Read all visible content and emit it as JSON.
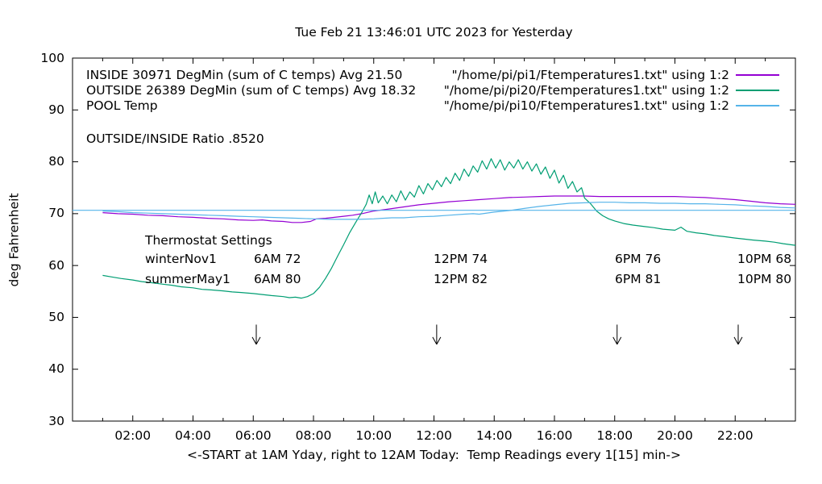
{
  "title": "Tue Feb 21 13:46:01 UTC 2023 for Yesterday",
  "ratio_text": "OUTSIDE/INSIDE Ratio .8520",
  "y_axis": {
    "label": "deg Fahrenheit",
    "min": 30,
    "max": 100,
    "ticks": [
      30,
      40,
      50,
      60,
      70,
      80,
      90,
      100
    ]
  },
  "x_axis": {
    "label": "<-START at 1AM Yday, right to 12AM Today:  Temp Readings every 1[15] min->",
    "min_hour": 0,
    "max_hour": 24,
    "major_ticks": [
      {
        "hour": 2,
        "label": "02:00"
      },
      {
        "hour": 4,
        "label": "04:00"
      },
      {
        "hour": 6,
        "label": "06:00"
      },
      {
        "hour": 8,
        "label": "08:00"
      },
      {
        "hour": 10,
        "label": "10:00"
      },
      {
        "hour": 12,
        "label": "12:00"
      },
      {
        "hour": 14,
        "label": "14:00"
      },
      {
        "hour": 16,
        "label": "16:00"
      },
      {
        "hour": 18,
        "label": "18:00"
      },
      {
        "hour": 20,
        "label": "20:00"
      },
      {
        "hour": 22,
        "label": "22:00"
      }
    ],
    "minor_tick_hours": [
      1,
      3,
      5,
      7,
      9,
      11,
      13,
      15,
      17,
      19,
      21,
      23
    ]
  },
  "legend": {
    "rows": [
      {
        "label": "INSIDE 30971 DegMin (sum of C temps) Avg 21.50",
        "file": "\"/home/pi/pi1/Ftemperatures1.txt\" using 1:2",
        "color": "#9400d3"
      },
      {
        "label": "OUTSIDE 26389 DegMin (sum of C temps) Avg 18.32",
        "file": "\"/home/pi/pi20/Ftemperatures1.txt\" using 1:2",
        "color": "#009e73"
      },
      {
        "label": "POOL Temp",
        "file": "\"/home/pi/pi10/Ftemperatures1.txt\" using 1:2",
        "color": "#56b4e9"
      }
    ]
  },
  "thermostat": {
    "heading": "Thermostat Settings",
    "rows": [
      {
        "season": "winterNov1",
        "settings": [
          "6AM 72",
          "12PM 74",
          "6PM 76",
          "10PM 68"
        ]
      },
      {
        "season": "summerMay1",
        "settings": [
          "6AM 80",
          "12PM 82",
          "6PM 81",
          "10PM 80"
        ]
      }
    ]
  },
  "chart_data": {
    "type": "line",
    "title": "Tue Feb 21 13:46:01 UTC 2023 for Yesterday",
    "xlabel": "<-START at 1AM Yday, right to 12AM Today:  Temp Readings every 1[15] min->",
    "ylabel": "deg Fahrenheit",
    "xlim": [
      0,
      24
    ],
    "ylim": [
      30,
      100
    ],
    "x_unit": "hour of day (Yesterday, 24h clock)",
    "grid": false,
    "legend_position": "top-left-inside",
    "series": [
      {
        "name": "INSIDE",
        "slug": "inside",
        "color": "#9400d3",
        "points": [
          [
            1,
            70.2
          ],
          [
            1.5,
            70.0
          ],
          [
            2,
            69.9
          ],
          [
            2.5,
            69.7
          ],
          [
            3,
            69.6
          ],
          [
            3.5,
            69.4
          ],
          [
            4,
            69.3
          ],
          [
            4.5,
            69.1
          ],
          [
            5,
            69.0
          ],
          [
            5.5,
            68.8
          ],
          [
            6,
            68.7
          ],
          [
            6.3,
            68.8
          ],
          [
            6.6,
            68.6
          ],
          [
            7,
            68.5
          ],
          [
            7.3,
            68.3
          ],
          [
            7.6,
            68.3
          ],
          [
            7.9,
            68.5
          ],
          [
            8.1,
            69.0
          ],
          [
            8.4,
            69.1
          ],
          [
            8.7,
            69.3
          ],
          [
            9,
            69.5
          ],
          [
            9.3,
            69.7
          ],
          [
            9.6,
            70.0
          ],
          [
            10,
            70.5
          ],
          [
            10.5,
            70.9
          ],
          [
            11,
            71.3
          ],
          [
            11.5,
            71.7
          ],
          [
            12,
            72.0
          ],
          [
            12.5,
            72.3
          ],
          [
            13,
            72.5
          ],
          [
            13.5,
            72.7
          ],
          [
            14,
            72.9
          ],
          [
            14.5,
            73.1
          ],
          [
            15,
            73.2
          ],
          [
            15.5,
            73.3
          ],
          [
            16,
            73.4
          ],
          [
            16.5,
            73.4
          ],
          [
            17,
            73.4
          ],
          [
            17.5,
            73.3
          ],
          [
            18,
            73.3
          ],
          [
            18.5,
            73.3
          ],
          [
            19,
            73.3
          ],
          [
            19.5,
            73.3
          ],
          [
            20,
            73.3
          ],
          [
            20.5,
            73.2
          ],
          [
            21,
            73.1
          ],
          [
            21.5,
            72.9
          ],
          [
            22,
            72.7
          ],
          [
            22.5,
            72.4
          ],
          [
            23,
            72.1
          ],
          [
            23.5,
            71.9
          ],
          [
            24,
            71.8
          ]
        ]
      },
      {
        "name": "OUTSIDE",
        "slug": "outside",
        "color": "#009e73",
        "points": [
          [
            1,
            58.1
          ],
          [
            1.3,
            57.8
          ],
          [
            1.6,
            57.5
          ],
          [
            2,
            57.2
          ],
          [
            2.3,
            56.9
          ],
          [
            2.6,
            56.7
          ],
          [
            3,
            56.4
          ],
          [
            3.3,
            56.2
          ],
          [
            3.6,
            55.9
          ],
          [
            4,
            55.7
          ],
          [
            4.3,
            55.4
          ],
          [
            4.6,
            55.3
          ],
          [
            5,
            55.1
          ],
          [
            5.3,
            54.9
          ],
          [
            5.6,
            54.8
          ],
          [
            6,
            54.6
          ],
          [
            6.3,
            54.4
          ],
          [
            6.6,
            54.2
          ],
          [
            7,
            54.0
          ],
          [
            7.2,
            53.8
          ],
          [
            7.4,
            53.9
          ],
          [
            7.6,
            53.7
          ],
          [
            7.8,
            54.0
          ],
          [
            8,
            54.6
          ],
          [
            8.2,
            55.8
          ],
          [
            8.4,
            57.5
          ],
          [
            8.6,
            59.5
          ],
          [
            8.8,
            61.8
          ],
          [
            9,
            64.0
          ],
          [
            9.2,
            66.3
          ],
          [
            9.4,
            68.3
          ],
          [
            9.6,
            70.2
          ],
          [
            9.75,
            71.8
          ],
          [
            9.85,
            73.6
          ],
          [
            9.95,
            71.9
          ],
          [
            10.05,
            74.2
          ],
          [
            10.15,
            72.1
          ],
          [
            10.3,
            73.4
          ],
          [
            10.45,
            71.9
          ],
          [
            10.6,
            73.6
          ],
          [
            10.75,
            72.3
          ],
          [
            10.9,
            74.4
          ],
          [
            11.05,
            72.6
          ],
          [
            11.2,
            74.2
          ],
          [
            11.35,
            73.2
          ],
          [
            11.5,
            75.4
          ],
          [
            11.65,
            73.8
          ],
          [
            11.8,
            75.8
          ],
          [
            11.95,
            74.6
          ],
          [
            12.1,
            76.4
          ],
          [
            12.25,
            75.2
          ],
          [
            12.4,
            77.0
          ],
          [
            12.55,
            75.8
          ],
          [
            12.7,
            77.8
          ],
          [
            12.85,
            76.4
          ],
          [
            13,
            78.6
          ],
          [
            13.15,
            77.2
          ],
          [
            13.3,
            79.2
          ],
          [
            13.45,
            78.0
          ],
          [
            13.6,
            80.2
          ],
          [
            13.75,
            78.6
          ],
          [
            13.9,
            80.6
          ],
          [
            14.05,
            78.8
          ],
          [
            14.2,
            80.4
          ],
          [
            14.35,
            78.4
          ],
          [
            14.5,
            80.0
          ],
          [
            14.65,
            78.8
          ],
          [
            14.8,
            80.4
          ],
          [
            14.95,
            78.6
          ],
          [
            15.1,
            80.0
          ],
          [
            15.25,
            78.2
          ],
          [
            15.4,
            79.6
          ],
          [
            15.55,
            77.6
          ],
          [
            15.7,
            79.0
          ],
          [
            15.85,
            76.8
          ],
          [
            16,
            78.4
          ],
          [
            16.15,
            75.9
          ],
          [
            16.3,
            77.4
          ],
          [
            16.45,
            74.9
          ],
          [
            16.6,
            76.2
          ],
          [
            16.75,
            74.2
          ],
          [
            16.9,
            75.0
          ],
          [
            17,
            73.0
          ],
          [
            17.2,
            71.9
          ],
          [
            17.4,
            70.5
          ],
          [
            17.6,
            69.6
          ],
          [
            17.8,
            69.0
          ],
          [
            18,
            68.6
          ],
          [
            18.3,
            68.1
          ],
          [
            18.6,
            67.8
          ],
          [
            19,
            67.5
          ],
          [
            19.3,
            67.3
          ],
          [
            19.6,
            67.0
          ],
          [
            20,
            66.8
          ],
          [
            20.2,
            67.4
          ],
          [
            20.4,
            66.6
          ],
          [
            20.7,
            66.3
          ],
          [
            21,
            66.1
          ],
          [
            21.3,
            65.8
          ],
          [
            21.6,
            65.6
          ],
          [
            22,
            65.3
          ],
          [
            22.3,
            65.1
          ],
          [
            22.6,
            64.9
          ],
          [
            23,
            64.7
          ],
          [
            23.3,
            64.5
          ],
          [
            23.6,
            64.2
          ],
          [
            24,
            63.9
          ]
        ]
      },
      {
        "name": "POOL Temp",
        "slug": "pool",
        "color": "#56b4e9",
        "points": [
          [
            1,
            70.5
          ],
          [
            1.5,
            70.4
          ],
          [
            2,
            70.2
          ],
          [
            2.5,
            70.1
          ],
          [
            3,
            70.0
          ],
          [
            3.5,
            69.9
          ],
          [
            4,
            69.8
          ],
          [
            4.5,
            69.7
          ],
          [
            5,
            69.6
          ],
          [
            5.5,
            69.5
          ],
          [
            6,
            69.4
          ],
          [
            6.5,
            69.3
          ],
          [
            7,
            69.2
          ],
          [
            7.5,
            69.1
          ],
          [
            8,
            69.0
          ],
          [
            8.5,
            68.9
          ],
          [
            9,
            68.9
          ],
          [
            9.5,
            68.9
          ],
          [
            10,
            69.0
          ],
          [
            10.3,
            69.1
          ],
          [
            10.6,
            69.2
          ],
          [
            11,
            69.2
          ],
          [
            11.5,
            69.4
          ],
          [
            12,
            69.5
          ],
          [
            12.5,
            69.7
          ],
          [
            13,
            69.9
          ],
          [
            13.3,
            70.0
          ],
          [
            13.5,
            69.9
          ],
          [
            14,
            70.3
          ],
          [
            14.5,
            70.6
          ],
          [
            15,
            71.0
          ],
          [
            15.5,
            71.4
          ],
          [
            16,
            71.7
          ],
          [
            16.5,
            72.0
          ],
          [
            17,
            72.1
          ],
          [
            17.5,
            72.2
          ],
          [
            18,
            72.2
          ],
          [
            18.5,
            72.1
          ],
          [
            19,
            72.1
          ],
          [
            19.5,
            72.0
          ],
          [
            20,
            72.0
          ],
          [
            20.5,
            71.9
          ],
          [
            21,
            71.9
          ],
          [
            21.5,
            71.8
          ],
          [
            22,
            71.7
          ],
          [
            22.5,
            71.5
          ],
          [
            23,
            71.4
          ],
          [
            23.5,
            71.2
          ],
          [
            24,
            71.1
          ]
        ]
      },
      {
        "name": "POOL flat reference line",
        "slug": "pool-flat",
        "color": "#56b4e9",
        "points": [
          [
            0,
            70.65
          ],
          [
            24,
            70.65
          ]
        ]
      }
    ],
    "annotations": {
      "down_arrows": {
        "hours": [
          6.1,
          12.09,
          18.08,
          22.1
        ],
        "temp_top": 48.6,
        "temp_tip": 44.8
      }
    }
  }
}
